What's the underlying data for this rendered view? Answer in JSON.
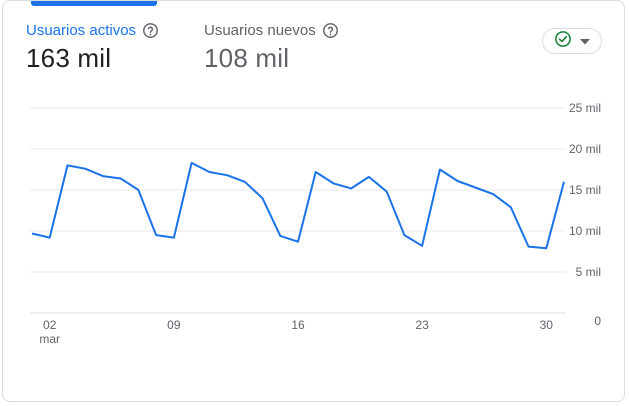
{
  "metrics": [
    {
      "label": "Usuarios activos",
      "value": "163 mil",
      "active": true,
      "help_icon": "help-circle-icon"
    },
    {
      "label": "Usuarios nuevos",
      "value": "108 mil",
      "active": false,
      "help_icon": "help-circle-icon"
    }
  ],
  "compare_button": {
    "icon": "check-circle-icon",
    "caret_icon": "caret-down-icon",
    "icon_color": "#188038"
  },
  "colors": {
    "accent": "#1a73e8",
    "line": "#1a73e8",
    "grid": "#e8eaed",
    "axis_text": "#5f6368"
  },
  "chart_data": {
    "type": "line",
    "x_tick_labels": [
      "02",
      "09",
      "16",
      "23",
      "30"
    ],
    "x_tick_sublabels": [
      "mar",
      "",
      "",
      "",
      ""
    ],
    "x_tick_index": [
      1,
      8,
      15,
      22,
      29
    ],
    "y_tick_labels": [
      "0",
      "5 mil",
      "10 mil",
      "15 mil",
      "20 mil",
      "25 mil"
    ],
    "ylim": [
      0,
      25000
    ],
    "series": [
      {
        "values": [
          9700,
          9200,
          18000,
          17600,
          16700,
          16400,
          15000,
          9500,
          9200,
          18300,
          17200,
          16800,
          16000,
          14000,
          9400,
          8700,
          17200,
          15800,
          15200,
          16600,
          14800,
          9500,
          8200,
          17500,
          16100,
          15300,
          14500,
          12900,
          8100,
          7900,
          16000
        ]
      }
    ]
  }
}
